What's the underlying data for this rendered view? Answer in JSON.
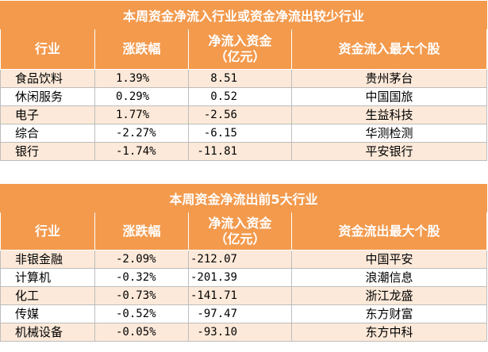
{
  "table1": {
    "title": "本周资金净流入行业或资金净流出较少行业",
    "headers": [
      "行业",
      "涨跌幅",
      "净流入资金\n（亿元）",
      "资金流入最大个股"
    ],
    "rows": [
      {
        "industry": "食品饮料",
        "change": "1.39%",
        "flow": "8.51",
        "stock": "贵州茅台"
      },
      {
        "industry": "休闲服务",
        "change": "0.29%",
        "flow": "0.52",
        "stock": "中国国旅"
      },
      {
        "industry": "电子",
        "change": "1.77%",
        "flow": "-2.56",
        "stock": "生益科技"
      },
      {
        "industry": "综合",
        "change": "-2.27%",
        "flow": "-6.15",
        "stock": "华测检测"
      },
      {
        "industry": "银行",
        "change": "-1.74%",
        "flow": "-11.81",
        "stock": "平安银行"
      }
    ]
  },
  "table2": {
    "title": "本周资金净流出前5大行业",
    "headers": [
      "行业",
      "涨跌幅",
      "净流入资金\n（亿元）",
      "资金流出最大个股"
    ],
    "rows": [
      {
        "industry": "非银金融",
        "change": "-2.09%",
        "flow": "-212.07",
        "stock": "中国平安"
      },
      {
        "industry": "计算机",
        "change": "-0.32%",
        "flow": "-201.39",
        "stock": "浪潮信息"
      },
      {
        "industry": "化工",
        "change": "-0.73%",
        "flow": "-141.71",
        "stock": "浙江龙盛"
      },
      {
        "industry": "传媒",
        "change": "-0.52%",
        "flow": "-97.47",
        "stock": "东方财富"
      },
      {
        "industry": "机械设备",
        "change": "-0.05%",
        "flow": "-93.10",
        "stock": "东方中科"
      }
    ]
  },
  "colors": {
    "header_bg": "#f39a4d",
    "header_text": "#ffffff",
    "row_alt_bg": "#fde9d9",
    "row_plain_bg": "#ffffff"
  }
}
